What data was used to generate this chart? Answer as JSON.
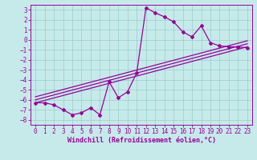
{
  "xlabel": "Windchill (Refroidissement éolien,°C)",
  "xlim": [
    -0.5,
    23.5
  ],
  "ylim": [
    -8.5,
    3.5
  ],
  "xticks": [
    0,
    1,
    2,
    3,
    4,
    5,
    6,
    7,
    8,
    9,
    10,
    11,
    12,
    13,
    14,
    15,
    16,
    17,
    18,
    19,
    20,
    21,
    22,
    23
  ],
  "yticks": [
    -8,
    -7,
    -6,
    -5,
    -4,
    -3,
    -2,
    -1,
    0,
    1,
    2,
    3
  ],
  "background_color": "#c6eaea",
  "line_color": "#990099",
  "grid_color": "#99cccc",
  "curve1_x": [
    0,
    1,
    2,
    3,
    4,
    5,
    6,
    7,
    8,
    9,
    10,
    11,
    12,
    13,
    14,
    15,
    16,
    17,
    18,
    19,
    20,
    21,
    22,
    23
  ],
  "curve1_y": [
    -6.3,
    -6.3,
    -6.5,
    -7.0,
    -7.5,
    -7.3,
    -6.8,
    -7.5,
    -4.2,
    -5.8,
    -5.2,
    -3.3,
    3.2,
    2.7,
    2.3,
    1.8,
    0.8,
    0.3,
    1.4,
    -0.3,
    -0.6,
    -0.7,
    -0.7,
    -0.8
  ],
  "curve2_x": [
    0,
    23
  ],
  "curve2_y": [
    -6.3,
    -0.7
  ],
  "curve3_x": [
    0,
    23
  ],
  "curve3_y": [
    -6.0,
    -0.4
  ],
  "curve4_x": [
    0,
    23
  ],
  "curve4_y": [
    -5.7,
    -0.1
  ],
  "figsize": [
    3.2,
    2.0
  ],
  "dpi": 100,
  "label_fontsize": 6,
  "tick_fontsize": 5.5,
  "linewidth": 0.9,
  "markersize": 2.0
}
